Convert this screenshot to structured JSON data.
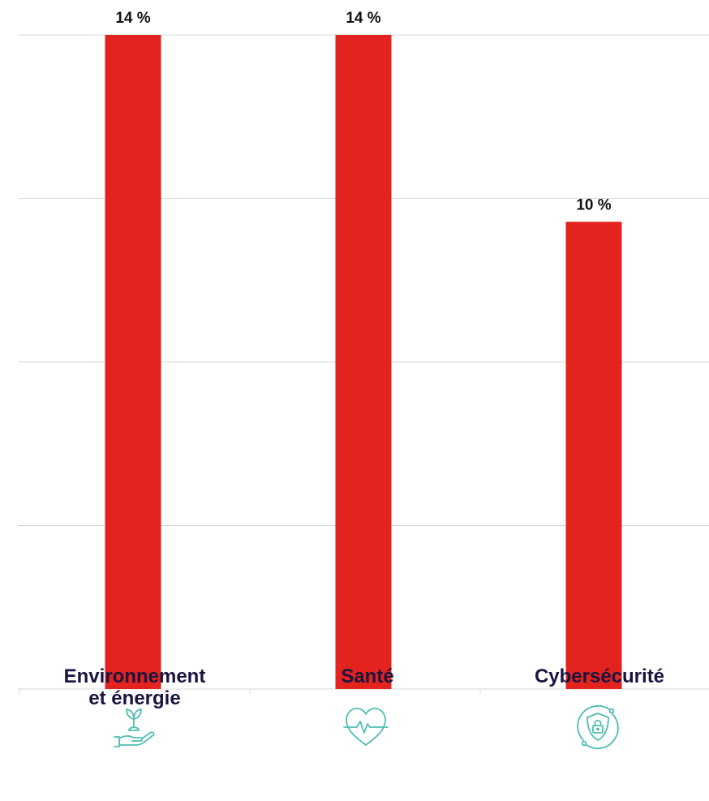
{
  "chart_data": {
    "type": "bar",
    "categories": [
      "Environnement et énergie",
      "Santé",
      "Cybersécurité"
    ],
    "category_lines": [
      [
        "Environnement",
        "et énergie"
      ],
      [
        "Santé"
      ],
      [
        "Cybersécurité"
      ]
    ],
    "values": [
      14,
      14,
      10
    ],
    "value_labels": [
      "14 %",
      "14 %",
      "10 %"
    ],
    "ylim": [
      0,
      14
    ],
    "grid": true,
    "title": "",
    "xlabel": "",
    "ylabel": ""
  },
  "icons": [
    "plant-in-hand-icon",
    "heartbeat-icon",
    "shield-lock-icon"
  ],
  "colors": {
    "bar": "#e2231e",
    "icon": "#4fbdb4",
    "label_text": "#1b1340",
    "value_text": "#111111",
    "grid": "#d9d9d9"
  }
}
